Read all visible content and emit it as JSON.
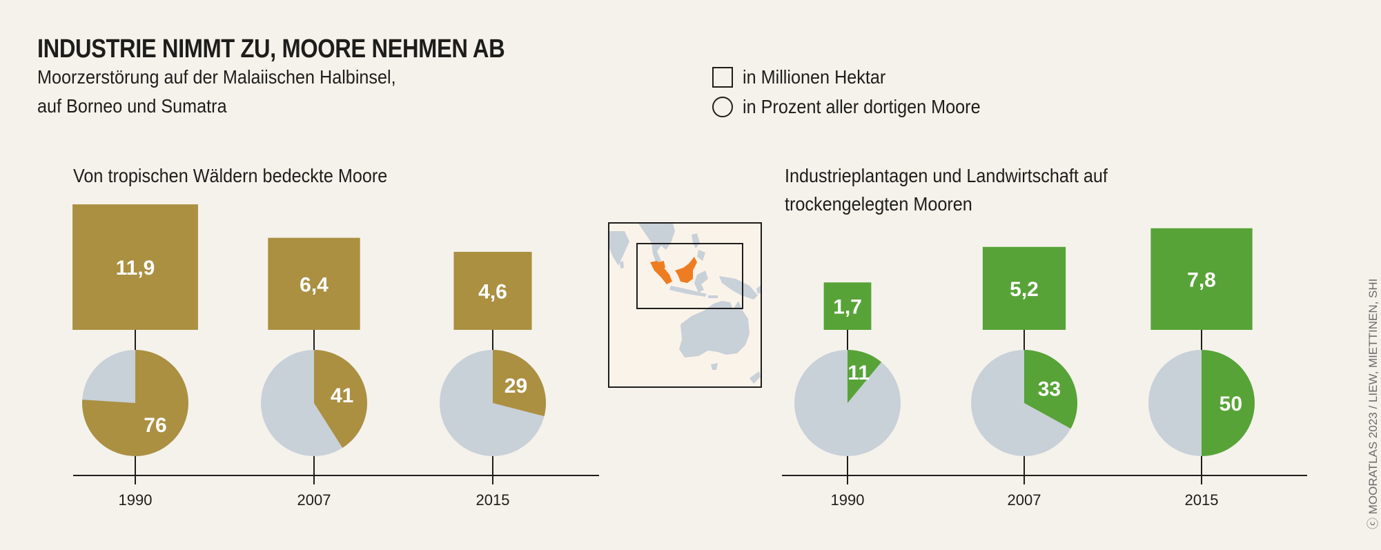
{
  "header": {
    "title": "INDUSTRIE NIMMT ZU, MOORE NEHMEN AB",
    "subtitle_line1": "Moorzerstörung auf der Malaiischen Halbinsel,",
    "subtitle_line2": "auf Borneo und Sumatra"
  },
  "legend": {
    "square_label": "in Millionen Hektar",
    "circle_label": "in Prozent aller dortigen Moore"
  },
  "credit": "ⓒ MOORATLAS 2023 / LIEW, MIETTINEN, SHI",
  "map": {
    "icon": "locator-map-southeast-asia",
    "highlight_color": "#EE7D22",
    "land_color": "#C8D0D8"
  },
  "colors": {
    "forest": "#AB9042",
    "industry": "#57A337",
    "remainder": "#C8D0D8",
    "axis": "#1D1D1B"
  },
  "chart_data": [
    {
      "type": "proportional-area-and-pie",
      "title": "Von tropischen Wäldern bedeckte Moore",
      "categories": [
        "1990",
        "2007",
        "2015"
      ],
      "series": [
        {
          "name": "in Millionen Hektar",
          "shape": "square",
          "values": [
            11.9,
            6.4,
            4.6
          ],
          "labels": [
            "11,9",
            "6,4",
            "4,6"
          ]
        },
        {
          "name": "in Prozent aller dortigen Moore",
          "shape": "pie",
          "values": [
            76,
            41,
            29
          ],
          "labels": [
            "76",
            "41",
            "29"
          ]
        }
      ]
    },
    {
      "type": "proportional-area-and-pie",
      "title_line1": "Industrieplantagen und Landwirtschaft auf",
      "title_line2": "trockengelegten Mooren",
      "categories": [
        "1990",
        "2007",
        "2015"
      ],
      "series": [
        {
          "name": "in Millionen Hektar",
          "shape": "square",
          "values": [
            1.7,
            5.2,
            7.8
          ],
          "labels": [
            "1,7",
            "5,2",
            "7,8"
          ]
        },
        {
          "name": "in Prozent aller dortigen Moore",
          "shape": "pie",
          "values": [
            11,
            33,
            50
          ],
          "labels": [
            "11",
            "33",
            "50"
          ]
        }
      ]
    }
  ]
}
